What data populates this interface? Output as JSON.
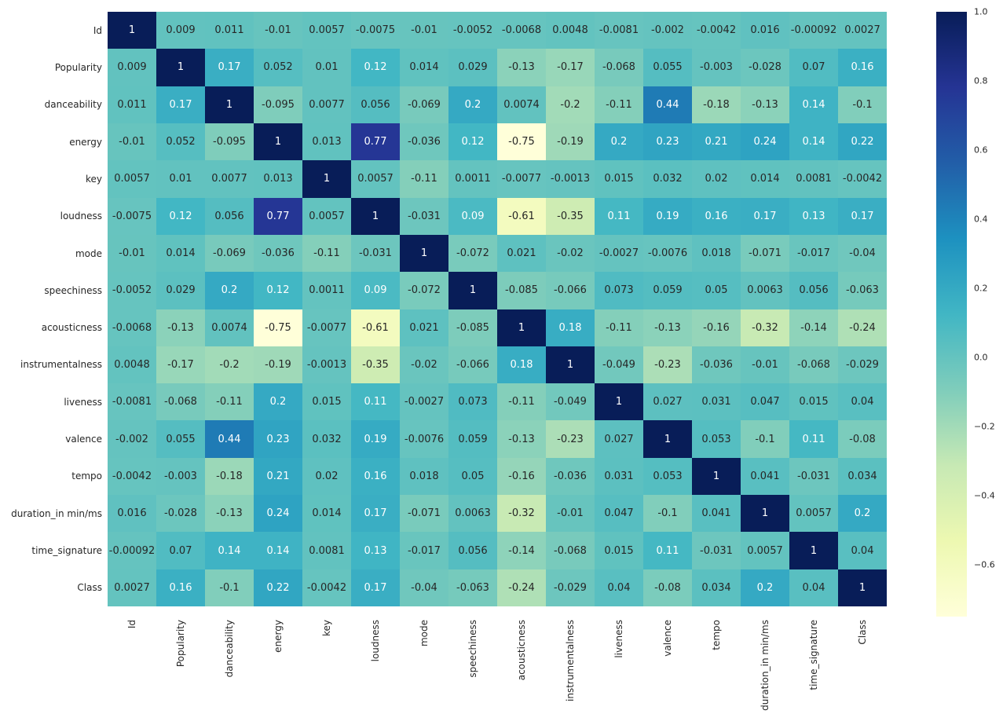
{
  "chart_data": {
    "type": "heatmap",
    "title": "",
    "xlabel": "",
    "ylabel": "",
    "grid": false,
    "legend_position": "right-colorbar",
    "labels": [
      "Id",
      "Popularity",
      "danceability",
      "energy",
      "key",
      "loudness",
      "mode",
      "speechiness",
      "acousticness",
      "instrumentalness",
      "liveness",
      "valence",
      "tempo",
      "duration_in min/ms",
      "time_signature",
      "Class"
    ],
    "matrix": [
      [
        1,
        0.009,
        0.011,
        -0.01,
        0.0057,
        -0.0075,
        -0.01,
        -0.0052,
        -0.0068,
        0.0048,
        -0.0081,
        -0.002,
        -0.0042,
        0.016,
        -0.00092,
        0.0027
      ],
      [
        0.009,
        1,
        0.17,
        0.052,
        0.01,
        0.12,
        0.014,
        0.029,
        -0.13,
        -0.17,
        -0.068,
        0.055,
        -0.003,
        -0.028,
        0.07,
        0.16
      ],
      [
        0.011,
        0.17,
        1,
        -0.095,
        0.0077,
        0.056,
        -0.069,
        0.2,
        0.0074,
        -0.2,
        -0.11,
        0.44,
        -0.18,
        -0.13,
        0.14,
        -0.1
      ],
      [
        -0.01,
        0.052,
        -0.095,
        1,
        0.013,
        0.77,
        -0.036,
        0.12,
        -0.75,
        -0.19,
        0.2,
        0.23,
        0.21,
        0.24,
        0.14,
        0.22
      ],
      [
        0.0057,
        0.01,
        0.0077,
        0.013,
        1,
        0.0057,
        -0.11,
        0.0011,
        -0.0077,
        -0.0013,
        0.015,
        0.032,
        0.02,
        0.014,
        0.0081,
        -0.0042
      ],
      [
        -0.0075,
        0.12,
        0.056,
        0.77,
        0.0057,
        1,
        -0.031,
        0.09,
        -0.61,
        -0.35,
        0.11,
        0.19,
        0.16,
        0.17,
        0.13,
        0.17
      ],
      [
        -0.01,
        0.014,
        -0.069,
        -0.036,
        -0.11,
        -0.031,
        1,
        -0.072,
        0.021,
        -0.02,
        -0.0027,
        -0.0076,
        0.018,
        -0.071,
        -0.017,
        -0.04
      ],
      [
        -0.0052,
        0.029,
        0.2,
        0.12,
        0.0011,
        0.09,
        -0.072,
        1,
        -0.085,
        -0.066,
        0.073,
        0.059,
        0.05,
        0.0063,
        0.056,
        -0.063
      ],
      [
        -0.0068,
        -0.13,
        0.0074,
        -0.75,
        -0.0077,
        -0.61,
        0.021,
        -0.085,
        1,
        0.18,
        -0.11,
        -0.13,
        -0.16,
        -0.32,
        -0.14,
        -0.24
      ],
      [
        0.0048,
        -0.17,
        -0.2,
        -0.19,
        -0.0013,
        -0.35,
        -0.02,
        -0.066,
        0.18,
        1,
        -0.049,
        -0.23,
        -0.036,
        -0.01,
        -0.068,
        -0.029
      ],
      [
        -0.0081,
        -0.068,
        -0.11,
        0.2,
        0.015,
        0.11,
        -0.0027,
        0.073,
        -0.11,
        -0.049,
        1,
        0.027,
        0.031,
        0.047,
        0.015,
        0.04
      ],
      [
        -0.002,
        0.055,
        0.44,
        0.23,
        0.032,
        0.19,
        -0.0076,
        0.059,
        -0.13,
        -0.23,
        0.027,
        1,
        0.053,
        -0.1,
        0.11,
        -0.08
      ],
      [
        -0.0042,
        -0.003,
        -0.18,
        0.21,
        0.02,
        0.16,
        0.018,
        0.05,
        -0.16,
        -0.036,
        0.031,
        0.053,
        1,
        0.041,
        -0.031,
        0.034
      ],
      [
        0.016,
        -0.028,
        -0.13,
        0.24,
        0.014,
        0.17,
        -0.071,
        0.0063,
        -0.32,
        -0.01,
        0.047,
        -0.1,
        0.041,
        1,
        0.0057,
        0.2
      ],
      [
        -0.00092,
        0.07,
        0.14,
        0.14,
        0.0081,
        0.13,
        -0.017,
        0.056,
        -0.14,
        -0.068,
        0.015,
        0.11,
        -0.031,
        0.0057,
        1,
        0.04
      ],
      [
        0.0027,
        0.16,
        -0.1,
        0.22,
        -0.0042,
        0.17,
        -0.04,
        -0.063,
        -0.24,
        -0.029,
        0.04,
        -0.08,
        0.034,
        0.2,
        0.04,
        1
      ]
    ],
    "vmin": -0.75,
    "vmax": 1.0,
    "colormap": {
      "name": "YlGnBu",
      "stops": [
        "#ffffd9",
        "#edf8b1",
        "#c7e9b4",
        "#7fcdbb",
        "#41b6c4",
        "#1d91c0",
        "#225ea8",
        "#253494",
        "#081d58"
      ]
    },
    "colorbar_ticks": [
      {
        "value": 1.0,
        "label": "1.0"
      },
      {
        "value": 0.8,
        "label": "0.8"
      },
      {
        "value": 0.6,
        "label": "0.6"
      },
      {
        "value": 0.4,
        "label": "0.4"
      },
      {
        "value": 0.2,
        "label": "0.2"
      },
      {
        "value": 0.0,
        "label": "0.0"
      },
      {
        "value": -0.2,
        "label": "−0.2"
      },
      {
        "value": -0.4,
        "label": "−0.4"
      },
      {
        "value": -0.6,
        "label": "−0.6"
      }
    ],
    "colors": {
      "background": "#ffffff",
      "annotation_dark_text": "#262626",
      "annotation_light_text": "#ffffff",
      "tick_label": "#262626"
    }
  }
}
